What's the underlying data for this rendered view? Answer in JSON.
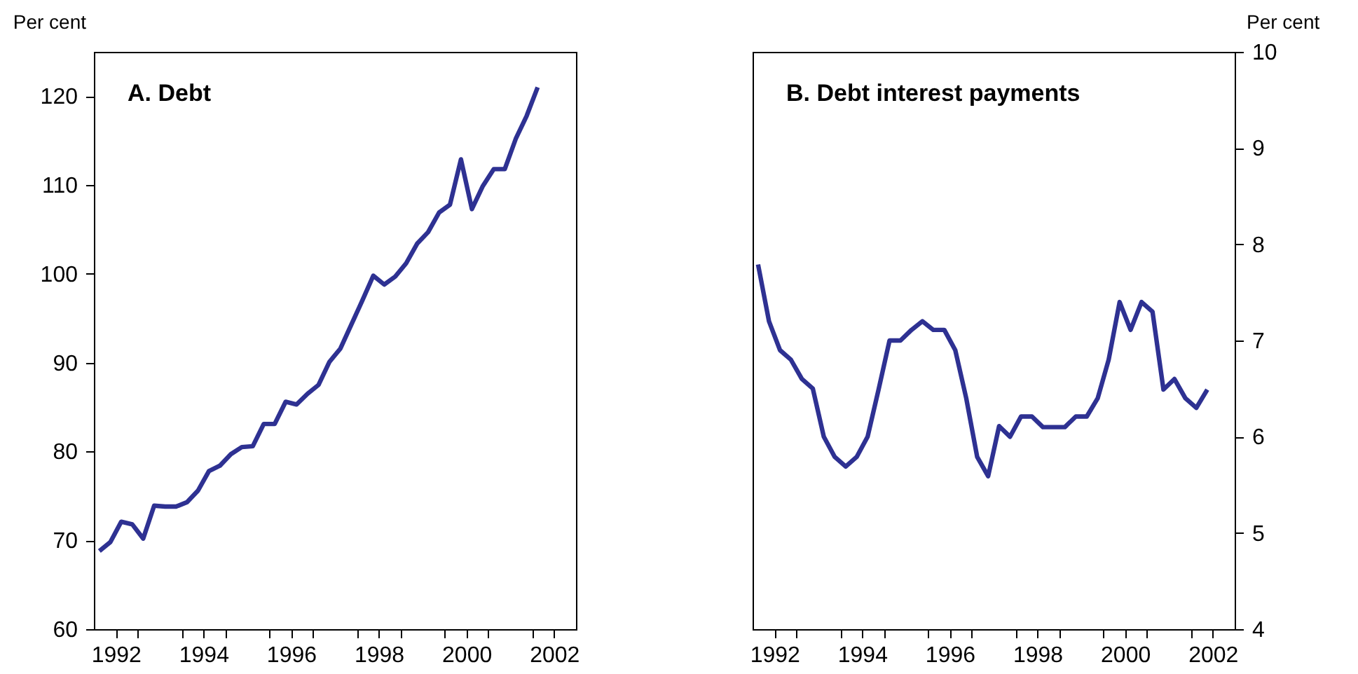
{
  "chart_data": [
    {
      "type": "line",
      "title": "A. Debt",
      "ylabel": "Per cent",
      "grid": false,
      "x": [
        1991.625,
        1991.875,
        1992.125,
        1992.375,
        1992.625,
        1992.875,
        1993.125,
        1993.375,
        1993.625,
        1993.875,
        1994.125,
        1994.375,
        1994.625,
        1994.875,
        1995.125,
        1995.375,
        1995.625,
        1995.875,
        1996.125,
        1996.375,
        1996.625,
        1996.875,
        1997.125,
        1997.375,
        1997.625,
        1997.875,
        1998.125,
        1998.375,
        1998.625,
        1998.875,
        1999.125,
        1999.375,
        1999.625,
        1999.875,
        2000.125,
        2000.375,
        2000.625,
        2000.875,
        2001.125,
        2001.375,
        2001.625
      ],
      "series": [
        {
          "color": "#2e3192",
          "axis": "y",
          "values": [
            68.8,
            69.8,
            72.1,
            71.8,
            70.2,
            73.9,
            73.8,
            73.8,
            74.3,
            75.6,
            77.8,
            78.4,
            79.7,
            80.5,
            80.6,
            83.1,
            83.1,
            85.6,
            85.3,
            86.5,
            87.5,
            90.1,
            91.6,
            94.3,
            97.0,
            99.8,
            98.8,
            99.7,
            101.2,
            103.4,
            104.7,
            106.9,
            107.8,
            112.9,
            107.3,
            109.9,
            111.8,
            111.8,
            115.2,
            117.8,
            121.0
          ]
        }
      ],
      "xlim": [
        1991.5,
        2002.5
      ],
      "xticks": [
        1992,
        {
          "value": 1992.5,
          "label": null
        },
        1994,
        {
          "value": 1993.5,
          "label": null
        },
        {
          "value": 1994.5,
          "label": null
        },
        1996,
        {
          "value": 1995.5,
          "label": null
        },
        {
          "value": 1996.5,
          "label": null
        },
        1998,
        {
          "value": 1997.5,
          "label": null
        },
        {
          "value": 1998.5,
          "label": null
        },
        2000,
        {
          "value": 1999.5,
          "label": null
        },
        {
          "value": 2000.5,
          "label": null
        },
        2002,
        {
          "value": 2001.5,
          "label": null
        }
      ],
      "ylim": [
        60,
        125
      ],
      "yticks": [
        60,
        70,
        80,
        90,
        100,
        110,
        120
      ]
    },
    {
      "type": "line",
      "title": "B. Debt interest payments",
      "y2label": "Per cent",
      "grid": false,
      "x": [
        1991.625,
        1991.875,
        1992.125,
        1992.375,
        1992.625,
        1992.875,
        1993.125,
        1993.375,
        1993.625,
        1993.875,
        1994.125,
        1994.375,
        1994.625,
        1994.875,
        1995.125,
        1995.375,
        1995.625,
        1995.875,
        1996.125,
        1996.375,
        1996.625,
        1996.875,
        1997.125,
        1997.375,
        1997.625,
        1997.875,
        1998.125,
        1998.375,
        1998.625,
        1998.875,
        1999.125,
        1999.375,
        1999.625,
        1999.875,
        2000.125,
        2000.375,
        2000.625,
        2000.875,
        2001.125,
        2001.375,
        2001.625,
        2001.875
      ],
      "series": [
        {
          "color": "#2e3192",
          "axis": "y2",
          "values": [
            7.79,
            7.2,
            6.9,
            6.8,
            6.6,
            6.5,
            6.0,
            5.79,
            5.69,
            5.79,
            6.0,
            6.49,
            7.0,
            7.0,
            7.11,
            7.2,
            7.11,
            7.11,
            6.9,
            6.4,
            5.79,
            5.59,
            6.11,
            6.0,
            6.21,
            6.21,
            6.1,
            6.1,
            6.1,
            6.21,
            6.21,
            6.4,
            6.8,
            7.4,
            7.11,
            7.4,
            7.3,
            6.49,
            6.6,
            6.4,
            6.3,
            6.49
          ]
        }
      ],
      "xlim": [
        1991.5,
        2002.5
      ],
      "xticks": [
        1992,
        {
          "value": 1992.5,
          "label": null
        },
        1994,
        {
          "value": 1993.5,
          "label": null
        },
        {
          "value": 1994.5,
          "label": null
        },
        1996,
        {
          "value": 1995.5,
          "label": null
        },
        {
          "value": 1996.5,
          "label": null
        },
        1998,
        {
          "value": 1997.5,
          "label": null
        },
        {
          "value": 1998.5,
          "label": null
        },
        2000,
        {
          "value": 1999.5,
          "label": null
        },
        {
          "value": 2000.5,
          "label": null
        },
        2002,
        {
          "value": 2001.5,
          "label": null
        }
      ],
      "y2lim": [
        4,
        10
      ],
      "y2ticks": [
        4,
        5,
        6,
        7,
        8,
        9,
        10
      ]
    }
  ]
}
